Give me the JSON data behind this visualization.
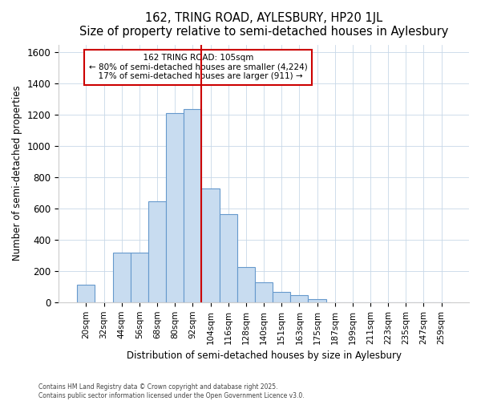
{
  "title": "162, TRING ROAD, AYLESBURY, HP20 1JL",
  "subtitle": "Size of property relative to semi-detached houses in Aylesbury",
  "xlabel": "Distribution of semi-detached houses by size in Aylesbury",
  "ylabel": "Number of semi-detached properties",
  "bar_color": "#c8dcf0",
  "bar_edge_color": "#6699cc",
  "grid_color": "#c8d8e8",
  "background_color": "#ffffff",
  "vline_color": "#cc0000",
  "ann_edge_color": "#cc0000",
  "categories": [
    "20sqm",
    "32sqm",
    "44sqm",
    "56sqm",
    "68sqm",
    "80sqm",
    "92sqm",
    "104sqm",
    "116sqm",
    "128sqm",
    "140sqm",
    "151sqm",
    "163sqm",
    "175sqm",
    "187sqm",
    "199sqm",
    "211sqm",
    "223sqm",
    "235sqm",
    "247sqm",
    "259sqm"
  ],
  "values": [
    110,
    0,
    315,
    315,
    645,
    1210,
    1235,
    730,
    565,
    225,
    130,
    65,
    45,
    20,
    0,
    0,
    0,
    0,
    0,
    0,
    0
  ],
  "property_label": "162 TRING ROAD: 105sqm",
  "pct_smaller": 80,
  "count_smaller": 4224,
  "pct_larger": 17,
  "count_larger": 911,
  "vline_bin_index": 7,
  "ylim": [
    0,
    1650
  ],
  "yticks": [
    0,
    200,
    400,
    600,
    800,
    1000,
    1200,
    1400,
    1600
  ],
  "footnote1": "Contains HM Land Registry data © Crown copyright and database right 2025.",
  "footnote2": "Contains public sector information licensed under the Open Government Licence v3.0."
}
